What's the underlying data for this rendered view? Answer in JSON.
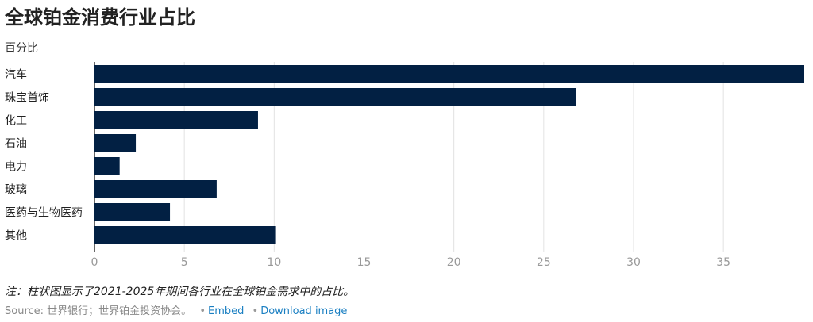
{
  "chart_data": {
    "type": "bar",
    "orientation": "horizontal",
    "title": "全球铂金消费行业占比",
    "subtitle": "百分比",
    "categories": [
      "汽车",
      "珠宝首饰",
      "化工",
      "石油",
      "电力",
      "玻璃",
      "医药与生物医药",
      "其他"
    ],
    "values": [
      39.5,
      26.8,
      9.1,
      2.3,
      1.4,
      6.8,
      4.2,
      10.1
    ],
    "xlim": [
      0,
      39.5
    ],
    "xticks": [
      "0",
      "5",
      "10",
      "15",
      "20",
      "25",
      "30",
      "35"
    ],
    "grid": true,
    "colors": {
      "bar": "#022043"
    }
  },
  "note": "注：柱状图显示了2021-2025年期间各行业在全球铂金需求中的占比。",
  "footer": {
    "source": "Source: 世界银行；世界铂金投资协会。",
    "embed": "Embed",
    "download": "Download image"
  }
}
